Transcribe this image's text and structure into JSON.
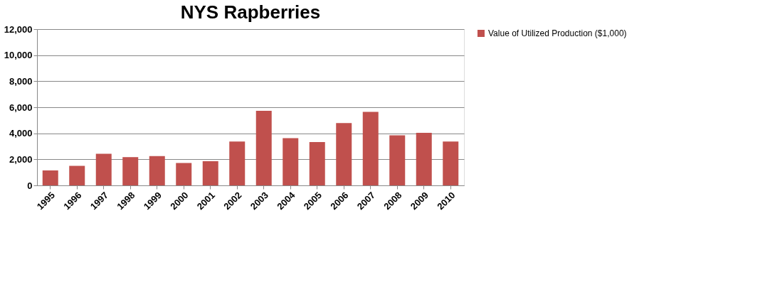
{
  "chart_data": {
    "type": "bar",
    "title": "NYS Rapberries",
    "categories": [
      "1995",
      "1996",
      "1997",
      "1998",
      "1999",
      "2000",
      "2001",
      "2002",
      "2003",
      "2004",
      "2005",
      "2006",
      "2007",
      "2008",
      "2009",
      "2010"
    ],
    "series": [
      {
        "name": "Value of Utilized Production ($1,000)",
        "color": "#c0504d",
        "values": [
          1150,
          1500,
          2430,
          2170,
          2250,
          1720,
          1860,
          3370,
          5730,
          3630,
          3330,
          4790,
          5640,
          3850,
          4040,
          3370
        ]
      }
    ],
    "ylim": [
      0,
      12000
    ],
    "yticks": [
      {
        "value": 0,
        "label": "0"
      },
      {
        "value": 2000,
        "label": "2,000"
      },
      {
        "value": 4000,
        "label": "4,000"
      },
      {
        "value": 6000,
        "label": "6,000"
      },
      {
        "value": 8000,
        "label": "8,000"
      },
      {
        "value": 10000,
        "label": "10,000"
      },
      {
        "value": 12000,
        "label": "12,000"
      }
    ],
    "grid": "y",
    "legend": "right"
  }
}
